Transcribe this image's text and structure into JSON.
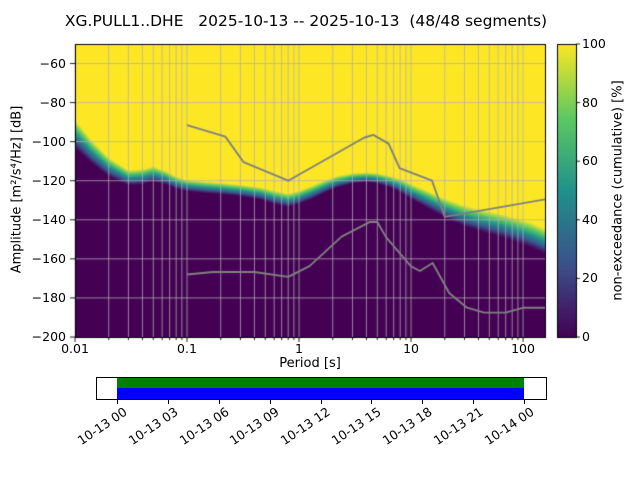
{
  "chart_data": {
    "type": "heatmap",
    "title": "XG.PULL1..DHE   2025-10-13 -- 2025-10-13  (48/48 segments)",
    "station": "XG.PULL1..DHE",
    "date_range": "2025-10-13 -- 2025-10-13",
    "segments": "48/48",
    "xlabel": "Period [s]",
    "ylabel": "Amplitude [m²/s⁴/Hz] [dB]",
    "xscale": "log",
    "xlim": [
      0.01,
      157
    ],
    "ylim": [
      -200,
      -50
    ],
    "grid": true,
    "grid_color": "#b0b0b0",
    "x_ticks": [
      {
        "v": 0.01,
        "label": "0.01"
      },
      {
        "v": 0.1,
        "label": "0.1"
      },
      {
        "v": 1,
        "label": "1"
      },
      {
        "v": 10,
        "label": "10"
      },
      {
        "v": 100,
        "label": "100"
      }
    ],
    "y_ticks": [
      {
        "v": -60,
        "label": "−60"
      },
      {
        "v": -80,
        "label": "−80"
      },
      {
        "v": -100,
        "label": "−100"
      },
      {
        "v": -120,
        "label": "−120"
      },
      {
        "v": -140,
        "label": "−140"
      },
      {
        "v": -160,
        "label": "−160"
      },
      {
        "v": -180,
        "label": "−180"
      },
      {
        "v": -200,
        "label": "−200"
      }
    ],
    "colorbar": {
      "label": "non-exceedance (cumulative) [%]",
      "range": [
        0,
        100
      ],
      "ticks": [
        0,
        20,
        40,
        60,
        80,
        100
      ],
      "colormap": "viridis"
    },
    "viridis_stops": [
      [
        0.0,
        "#440154"
      ],
      [
        0.25,
        "#3b528b"
      ],
      [
        0.5,
        "#21918c"
      ],
      [
        0.75,
        "#5ec962"
      ],
      [
        1.0,
        "#fde725"
      ]
    ],
    "cumulative_boundary_points": [
      [
        0.01,
        -96,
        15
      ],
      [
        0.014,
        -105,
        12
      ],
      [
        0.02,
        -113,
        10
      ],
      [
        0.03,
        -118.5,
        8
      ],
      [
        0.04,
        -118,
        8
      ],
      [
        0.05,
        -116.5,
        8
      ],
      [
        0.065,
        -118.5,
        7
      ],
      [
        0.08,
        -121,
        6.5
      ],
      [
        0.1,
        -122.5,
        6
      ],
      [
        0.15,
        -123.5,
        6
      ],
      [
        0.2,
        -124,
        6
      ],
      [
        0.3,
        -125,
        6
      ],
      [
        0.45,
        -126.5,
        6.5
      ],
      [
        0.6,
        -128.5,
        7
      ],
      [
        0.8,
        -130,
        7
      ],
      [
        1.0,
        -128.5,
        7
      ],
      [
        1.3,
        -126,
        7
      ],
      [
        1.7,
        -123,
        6.5
      ],
      [
        2.2,
        -120.5,
        6
      ],
      [
        3.0,
        -118.8,
        5.5
      ],
      [
        4.0,
        -118.2,
        5
      ],
      [
        5.0,
        -118.8,
        5.5
      ],
      [
        6.5,
        -120.5,
        6
      ],
      [
        8.0,
        -122.5,
        7
      ],
      [
        10,
        -125.5,
        8
      ],
      [
        14,
        -129.5,
        9
      ],
      [
        20,
        -134,
        10
      ],
      [
        30,
        -138,
        11
      ],
      [
        45,
        -140.8,
        11.5
      ],
      [
        65,
        -143,
        12
      ],
      [
        90,
        -145.5,
        12.5
      ],
      [
        120,
        -148,
        13
      ],
      [
        157,
        -151,
        13
      ]
    ],
    "noise_models": {
      "color": "#808080",
      "nhnm": [
        [
          0.1,
          -91.5
        ],
        [
          0.22,
          -97.4
        ],
        [
          0.32,
          -110.5
        ],
        [
          0.8,
          -120.0
        ],
        [
          3.8,
          -98.0
        ],
        [
          4.6,
          -96.5
        ],
        [
          6.3,
          -101.0
        ],
        [
          7.9,
          -113.5
        ],
        [
          15.4,
          -120.0
        ],
        [
          20.0,
          -138.5
        ],
        [
          354.8,
          -126.0
        ]
      ],
      "nlnm": [
        [
          0.1,
          -168.0
        ],
        [
          0.17,
          -166.7
        ],
        [
          0.4,
          -166.7
        ],
        [
          0.8,
          -169.2
        ],
        [
          1.24,
          -163.7
        ],
        [
          2.4,
          -148.6
        ],
        [
          4.3,
          -141.1
        ],
        [
          5.0,
          -141.1
        ],
        [
          6.0,
          -149.0
        ],
        [
          10.0,
          -163.8
        ],
        [
          12.0,
          -166.2
        ],
        [
          15.6,
          -162.1
        ],
        [
          21.9,
          -177.5
        ],
        [
          31.6,
          -185.0
        ],
        [
          45.0,
          -187.5
        ],
        [
          70.0,
          -187.5
        ],
        [
          101.0,
          -185.0
        ],
        [
          154.0,
          -185.0
        ],
        [
          328.5,
          -187.5
        ]
      ]
    },
    "timeline": {
      "tick_hours": [
        0,
        3,
        6,
        9,
        12,
        15,
        18,
        21,
        24
      ],
      "tick_labels": [
        "10-13 00",
        "10-13 03",
        "10-13 06",
        "10-13 09",
        "10-13 12",
        "10-13 15",
        "10-13 18",
        "10-13 21",
        "10-14 00"
      ],
      "coverage_color": "#008000",
      "data_color": "#0000ff",
      "coverage_fraction": 1.0
    }
  }
}
